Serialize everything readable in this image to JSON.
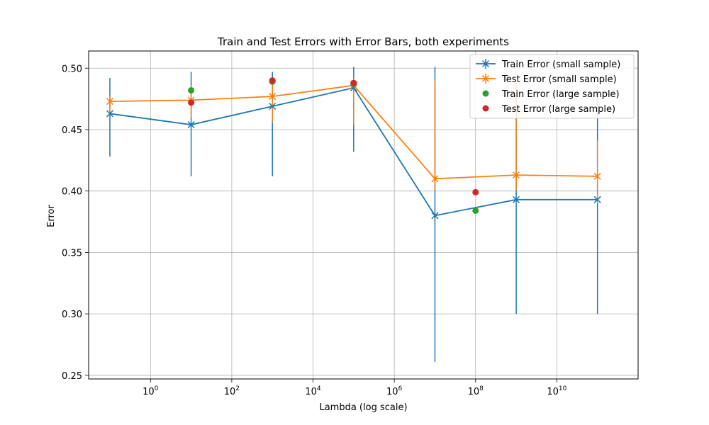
{
  "chart_data": {
    "type": "line",
    "title": "Train and Test Errors with Error Bars, both experiments",
    "xlabel": "Lambda (log scale)",
    "ylabel": "Error",
    "xscale": "log",
    "xlim": [
      0.03,
      1000000000000
    ],
    "ylim": [
      0.247,
      0.514
    ],
    "grid": true,
    "legend_position": "top-right",
    "x_ticks": [
      {
        "value": 1,
        "base": "10",
        "exp": "0"
      },
      {
        "value": 100,
        "base": "10",
        "exp": "2"
      },
      {
        "value": 10000,
        "base": "10",
        "exp": "4"
      },
      {
        "value": 1000000,
        "base": "10",
        "exp": "6"
      },
      {
        "value": 100000000,
        "base": "10",
        "exp": "8"
      },
      {
        "value": 10000000000,
        "base": "10",
        "exp": "10"
      }
    ],
    "y_ticks": [
      {
        "value": 0.25,
        "label": "0.25"
      },
      {
        "value": 0.3,
        "label": "0.30"
      },
      {
        "value": 0.35,
        "label": "0.35"
      },
      {
        "value": 0.4,
        "label": "0.40"
      },
      {
        "value": 0.45,
        "label": "0.45"
      },
      {
        "value": 0.5,
        "label": "0.50"
      }
    ],
    "series": [
      {
        "name": "Train Error (small sample)",
        "kind": "line-errorbar",
        "marker": "x",
        "color": "#1f77b4",
        "x": [
          0.1,
          10,
          1000,
          100000,
          10000000,
          1000000000,
          100000000000
        ],
        "y": [
          0.463,
          0.454,
          0.469,
          0.484,
          0.38,
          0.393,
          0.393
        ],
        "err_low": [
          0.428,
          0.412,
          0.412,
          0.432,
          0.261,
          0.3,
          0.3
        ],
        "err_high": [
          0.492,
          0.497,
          0.497,
          0.501,
          0.501,
          0.487,
          0.487
        ]
      },
      {
        "name": "Test Error (small sample)",
        "kind": "line-errorbar",
        "marker": "x",
        "color": "#ff7f0e",
        "x": [
          0.1,
          10,
          1000,
          100000,
          10000000,
          1000000000,
          100000000000
        ],
        "y": [
          0.473,
          0.474,
          0.477,
          0.486,
          0.41,
          0.413,
          0.412
        ],
        "err_low": [
          0.462,
          0.46,
          0.456,
          0.454,
          0.4,
          0.4,
          0.39
        ],
        "err_high": [
          0.478,
          0.486,
          0.492,
          0.492,
          0.49,
          0.49,
          0.441
        ]
      },
      {
        "name": "Train Error (large sample)",
        "kind": "scatter",
        "marker": "o",
        "color": "#2ca02c",
        "x": [
          10,
          1000,
          100000,
          100000000
        ],
        "y": [
          0.482,
          0.489,
          0.487,
          0.384
        ]
      },
      {
        "name": "Test Error (large sample)",
        "kind": "scatter",
        "marker": "o",
        "color": "#d62728",
        "x": [
          10,
          1000,
          100000,
          100000000
        ],
        "y": [
          0.472,
          0.49,
          0.488,
          0.399
        ]
      }
    ]
  }
}
